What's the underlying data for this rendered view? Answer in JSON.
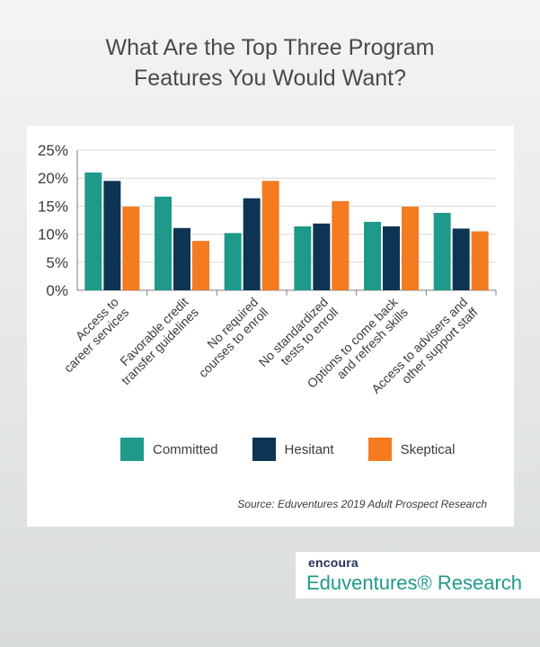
{
  "title_lines": [
    "What Are the Top Three Program",
    "Features You Would Want?"
  ],
  "source": "Source: Eduventures 2019 Adult Prospect Research",
  "logo": {
    "top": "encoura",
    "bottom": "Eduventures® Research"
  },
  "colors": {
    "committed": "#1f9a8a",
    "hesitant": "#0d3553",
    "skeptical": "#f47b1f",
    "axis": "#7f7f7f",
    "grid": "#d9d9d9",
    "text": "#3b3b3b"
  },
  "chart_data": {
    "type": "bar",
    "title": "What Are the Top Three Program Features You Would Want?",
    "categories": [
      "Access to career services",
      "Favorable credit transfer guidelines",
      "No required courses to enroll",
      "No standardized tests to enroll",
      "Options to come back and refresh skills",
      "Access to advisers and other support staff"
    ],
    "category_lines": [
      [
        "Access to",
        "career services"
      ],
      [
        "Favorable credit",
        "transfer guidelines"
      ],
      [
        "No required",
        "courses to enroll"
      ],
      [
        "No standardized",
        "tests to enroll"
      ],
      [
        "Options to come back",
        "and refresh skills"
      ],
      [
        "Access to advisers and",
        "other support staff"
      ]
    ],
    "series": [
      {
        "name": "Committed",
        "color": "#1f9a8a",
        "values": [
          21.0,
          16.7,
          10.2,
          11.4,
          12.2,
          13.8
        ]
      },
      {
        "name": "Hesitant",
        "color": "#0d3553",
        "values": [
          19.5,
          11.1,
          16.4,
          11.9,
          11.4,
          11.0
        ]
      },
      {
        "name": "Skeptical",
        "color": "#f47b1f",
        "values": [
          14.9,
          8.8,
          19.5,
          15.9,
          14.9,
          10.5
        ]
      }
    ],
    "ylim": [
      0,
      25
    ],
    "yticks": [
      "0%",
      "5%",
      "10%",
      "15%",
      "20%",
      "25%"
    ],
    "ytick_values": [
      0,
      5,
      10,
      15,
      20,
      25
    ],
    "grid": true,
    "legend_position": "bottom"
  }
}
